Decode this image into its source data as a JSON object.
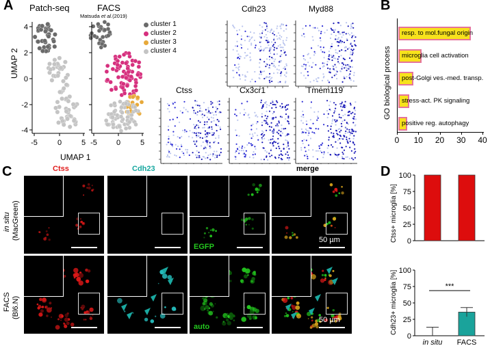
{
  "panels": {
    "A": "A",
    "B": "B",
    "C": "C",
    "D": "D"
  },
  "panelA": {
    "patchseq_title": "Patch-seq",
    "facs_title": "FACS",
    "facs_citation_pre": "Matsuda ",
    "facs_citation_etal": "et al.",
    "facs_citation_year": "(2019)",
    "xlabel": "UMAP 1",
    "ylabel": "UMAP 2",
    "yticks": [
      "4",
      "2",
      "0",
      "-2",
      "-4"
    ],
    "xticks1": [
      "-5",
      "0",
      "5"
    ],
    "xticks2": [
      "-5",
      "0",
      "5"
    ],
    "legend": [
      {
        "label": "cluster 1",
        "color": "#6a6a6a"
      },
      {
        "label": "cluster 2",
        "color": "#d6307e"
      },
      {
        "label": "cluster 3",
        "color": "#e7a93a"
      },
      {
        "label": "cluster 4",
        "color": "#c4c4c4"
      }
    ],
    "genes": [
      "Cdh23",
      "Myd88",
      "Ctss",
      "Cx3cr1",
      "Tmem119"
    ]
  },
  "panelB": {
    "ylabel": "GO biological process",
    "xticks": [
      "0",
      "10",
      "20",
      "30",
      "40"
    ],
    "xlim": [
      0,
      40
    ],
    "bar_color": "#f7e21c",
    "bar_border": "#e5739a",
    "terms": [
      {
        "label": "resp. to mol.fungal origin",
        "value": 34
      },
      {
        "label": "microglia cell activation",
        "value": 11
      },
      {
        "label": "post-Golgi ves.-med. transp.",
        "value": 7
      },
      {
        "label": "stress-act. PK signaling",
        "value": 5
      },
      {
        "label": "positive reg. autophagy",
        "value": 4
      }
    ]
  },
  "panelC": {
    "col_headers": {
      "ctss": "Ctss",
      "cdh23": "Cdh23",
      "merge": "merge"
    },
    "row_insitu_line1": "in situ",
    "row_insitu_line2": "(MacGreen)",
    "row_facs_line1": "FACS",
    "row_facs_line2": "(Bl6.N)",
    "egfp_label": "EGFP",
    "auto_label": "auto",
    "scale_label": "50 µm"
  },
  "chart_data": [
    {
      "type": "bar",
      "title": "",
      "categories": [
        "in situ",
        "FACS"
      ],
      "values": [
        100,
        100
      ],
      "ylabel": "Ctss+ microglia [%]",
      "ylim": [
        0,
        100
      ],
      "yticks": [
        "100",
        "75",
        "50",
        "25",
        "0"
      ],
      "bar_color": "#dd0d0d"
    },
    {
      "type": "bar",
      "title": "",
      "categories": [
        "in situ",
        "FACS"
      ],
      "values": [
        0,
        36
      ],
      "errors": [
        13,
        7
      ],
      "ylabel": "Cdh23+ microglia [%]",
      "ylim": [
        0,
        100
      ],
      "yticks": [
        "100",
        "75",
        "50",
        "25",
        "0"
      ],
      "bar_color": "#1aa39b",
      "significance": "***"
    }
  ]
}
